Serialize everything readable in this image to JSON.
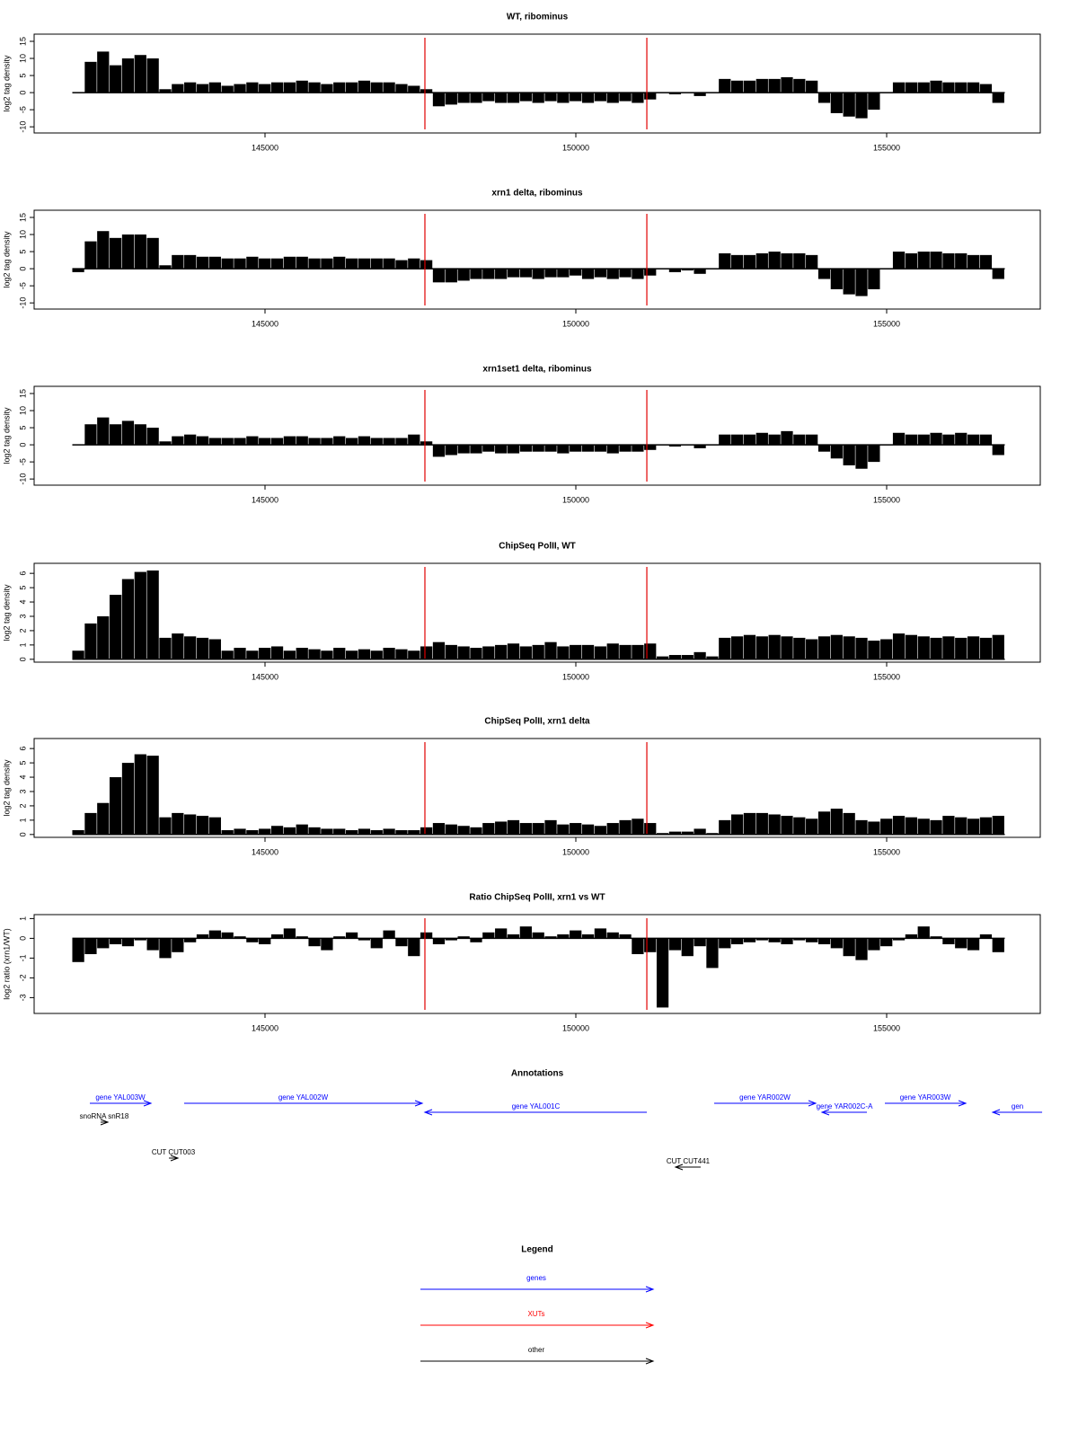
{
  "chart_data": [
    {
      "type": "bar",
      "title": "WT, ribominus",
      "ylabel": "log2 tag density",
      "color": "#000000",
      "vline_color": "#e00000",
      "xlim": [
        141286,
        157471
      ],
      "xticks": [
        145000,
        150000,
        155000
      ],
      "ylim": [
        -11.8,
        17.1
      ],
      "yticks": [
        -10,
        -5,
        0,
        5,
        10,
        15
      ],
      "vlines": [
        147572,
        151142
      ],
      "x": [
        141900,
        142100,
        142300,
        142500,
        142700,
        142900,
        143100,
        143300,
        143500,
        143700,
        143900,
        144100,
        144300,
        144500,
        144700,
        144900,
        145100,
        145300,
        145500,
        145700,
        145900,
        146100,
        146300,
        146500,
        146700,
        146900,
        147100,
        147300,
        147500,
        147700,
        147900,
        148100,
        148300,
        148500,
        148700,
        148900,
        149100,
        149300,
        149500,
        149700,
        149900,
        150100,
        150300,
        150500,
        150700,
        150900,
        151100,
        151300,
        151500,
        151700,
        151900,
        152100,
        152300,
        152500,
        152700,
        152900,
        153100,
        153300,
        153500,
        153700,
        153900,
        154100,
        154300,
        154500,
        154700,
        154900,
        155100,
        155300,
        155500,
        155700,
        155900,
        156100,
        156300,
        156500,
        156700
      ],
      "values": [
        0,
        9,
        12,
        8,
        10,
        11,
        10,
        1,
        2.5,
        3,
        2.5,
        3,
        2,
        2.5,
        3,
        2.5,
        3,
        3,
        3.5,
        3,
        2.5,
        3,
        3,
        3.5,
        3,
        3,
        2.5,
        2,
        1,
        -4,
        -3.5,
        -3,
        -3,
        -2.5,
        -3,
        -3,
        -2.5,
        -3,
        -2.5,
        -3,
        -2.5,
        -3,
        -2.5,
        -3,
        -2.5,
        -3,
        -2,
        0,
        -0.5,
        0,
        -1,
        0,
        4,
        3.5,
        3.5,
        4,
        4,
        4.5,
        4,
        3.5,
        -3,
        -6,
        -7,
        -7.5,
        -5,
        0,
        3,
        3,
        3,
        3.5,
        3,
        3,
        3,
        2.5,
        -3
      ]
    },
    {
      "type": "bar",
      "title": "xrn1 delta, ribominus",
      "ylabel": "log2 tag density",
      "color": "#000000",
      "vline_color": "#e00000",
      "xlim": [
        141286,
        157471
      ],
      "xticks": [
        145000,
        150000,
        155000
      ],
      "ylim": [
        -11.8,
        17.1
      ],
      "yticks": [
        -10,
        -5,
        0,
        5,
        10,
        15
      ],
      "vlines": [
        147572,
        151142
      ],
      "x": [
        141900,
        142100,
        142300,
        142500,
        142700,
        142900,
        143100,
        143300,
        143500,
        143700,
        143900,
        144100,
        144300,
        144500,
        144700,
        144900,
        145100,
        145300,
        145500,
        145700,
        145900,
        146100,
        146300,
        146500,
        146700,
        146900,
        147100,
        147300,
        147500,
        147700,
        147900,
        148100,
        148300,
        148500,
        148700,
        148900,
        149100,
        149300,
        149500,
        149700,
        149900,
        150100,
        150300,
        150500,
        150700,
        150900,
        151100,
        151300,
        151500,
        151700,
        151900,
        152100,
        152300,
        152500,
        152700,
        152900,
        153100,
        153300,
        153500,
        153700,
        153900,
        154100,
        154300,
        154500,
        154700,
        154900,
        155100,
        155300,
        155500,
        155700,
        155900,
        156100,
        156300,
        156500,
        156700
      ],
      "values": [
        -1,
        8,
        11,
        9,
        10,
        10,
        9,
        1,
        4,
        4,
        3.5,
        3.5,
        3,
        3,
        3.5,
        3,
        3,
        3.5,
        3.5,
        3,
        3,
        3.5,
        3,
        3,
        3,
        3,
        2.5,
        3,
        2.5,
        -4,
        -4,
        -3.5,
        -3,
        -3,
        -3,
        -2.5,
        -2.5,
        -3,
        -2.5,
        -2.5,
        -2,
        -3,
        -2.5,
        -3,
        -2.5,
        -3,
        -2,
        0,
        -1,
        -0.5,
        -1.5,
        0,
        4.5,
        4,
        4,
        4.5,
        5,
        4.5,
        4.5,
        4,
        -3,
        -6,
        -7.5,
        -8,
        -6,
        0,
        5,
        4.5,
        5,
        5,
        4.5,
        4.5,
        4,
        4,
        -3
      ]
    },
    {
      "type": "bar",
      "title": "xrn1set1 delta, ribominus",
      "ylabel": "log2 tag density",
      "color": "#000000",
      "vline_color": "#e00000",
      "xlim": [
        141286,
        157471
      ],
      "xticks": [
        145000,
        150000,
        155000
      ],
      "ylim": [
        -11.8,
        17.1
      ],
      "yticks": [
        -10,
        -5,
        0,
        5,
        10,
        15
      ],
      "vlines": [
        147572,
        151142
      ],
      "x": [
        141900,
        142100,
        142300,
        142500,
        142700,
        142900,
        143100,
        143300,
        143500,
        143700,
        143900,
        144100,
        144300,
        144500,
        144700,
        144900,
        145100,
        145300,
        145500,
        145700,
        145900,
        146100,
        146300,
        146500,
        146700,
        146900,
        147100,
        147300,
        147500,
        147700,
        147900,
        148100,
        148300,
        148500,
        148700,
        148900,
        149100,
        149300,
        149500,
        149700,
        149900,
        150100,
        150300,
        150500,
        150700,
        150900,
        151100,
        151300,
        151500,
        151700,
        151900,
        152100,
        152300,
        152500,
        152700,
        152900,
        153100,
        153300,
        153500,
        153700,
        153900,
        154100,
        154300,
        154500,
        154700,
        154900,
        155100,
        155300,
        155500,
        155700,
        155900,
        156100,
        156300,
        156500,
        156700
      ],
      "values": [
        0,
        6,
        8,
        6,
        7,
        6,
        5,
        1,
        2.5,
        3,
        2.5,
        2,
        2,
        2,
        2.5,
        2,
        2,
        2.5,
        2.5,
        2,
        2,
        2.5,
        2,
        2.5,
        2,
        2,
        2,
        3,
        1,
        -3.5,
        -3,
        -2.5,
        -2.5,
        -2,
        -2.5,
        -2.5,
        -2,
        -2,
        -2,
        -2.5,
        -2,
        -2,
        -2,
        -2.5,
        -2,
        -2,
        -1.5,
        0,
        -0.5,
        0,
        -1,
        0,
        3,
        3,
        3,
        3.5,
        3,
        4,
        3,
        3,
        -2,
        -4,
        -6,
        -7,
        -5,
        0,
        3.5,
        3,
        3,
        3.5,
        3,
        3.5,
        3,
        3,
        -3
      ]
    },
    {
      "type": "bar",
      "title": "ChipSeq PolII, WT",
      "ylabel": "log2 tag density",
      "color": "#000000",
      "vline_color": "#e00000",
      "xlim": [
        141286,
        157471
      ],
      "xticks": [
        145000,
        150000,
        155000
      ],
      "ylim": [
        -0.2,
        6.7
      ],
      "yticks": [
        0,
        1,
        2,
        3,
        4,
        5,
        6
      ],
      "vlines": [
        147572,
        151142
      ],
      "x": [
        141900,
        142100,
        142300,
        142500,
        142700,
        142900,
        143100,
        143300,
        143500,
        143700,
        143900,
        144100,
        144300,
        144500,
        144700,
        144900,
        145100,
        145300,
        145500,
        145700,
        145900,
        146100,
        146300,
        146500,
        146700,
        146900,
        147100,
        147300,
        147500,
        147700,
        147900,
        148100,
        148300,
        148500,
        148700,
        148900,
        149100,
        149300,
        149500,
        149700,
        149900,
        150100,
        150300,
        150500,
        150700,
        150900,
        151100,
        151300,
        151500,
        151700,
        151900,
        152100,
        152300,
        152500,
        152700,
        152900,
        153100,
        153300,
        153500,
        153700,
        153900,
        154100,
        154300,
        154500,
        154700,
        154900,
        155100,
        155300,
        155500,
        155700,
        155900,
        156100,
        156300,
        156500,
        156700
      ],
      "values": [
        0.6,
        2.5,
        3,
        4.5,
        5.6,
        6.1,
        6.2,
        1.5,
        1.8,
        1.6,
        1.5,
        1.4,
        0.6,
        0.8,
        0.6,
        0.8,
        0.9,
        0.6,
        0.8,
        0.7,
        0.6,
        0.8,
        0.6,
        0.7,
        0.6,
        0.8,
        0.7,
        0.6,
        0.9,
        1.2,
        1,
        0.9,
        0.8,
        0.9,
        1,
        1.1,
        0.9,
        1,
        1.2,
        0.9,
        1,
        1,
        0.9,
        1.1,
        1,
        1,
        1.1,
        0.2,
        0.3,
        0.3,
        0.5,
        0.2,
        1.5,
        1.6,
        1.7,
        1.6,
        1.7,
        1.6,
        1.5,
        1.4,
        1.6,
        1.7,
        1.6,
        1.5,
        1.3,
        1.4,
        1.8,
        1.7,
        1.6,
        1.5,
        1.6,
        1.5,
        1.6,
        1.5,
        1.7
      ]
    },
    {
      "type": "bar",
      "title": "ChipSeq PolII, xrn1 delta",
      "ylabel": "log2 tag density",
      "color": "#000000",
      "vline_color": "#e00000",
      "xlim": [
        141286,
        157471
      ],
      "xticks": [
        145000,
        150000,
        155000
      ],
      "ylim": [
        -0.2,
        6.7
      ],
      "yticks": [
        0,
        1,
        2,
        3,
        4,
        5,
        6
      ],
      "vlines": [
        147572,
        151142
      ],
      "x": [
        141900,
        142100,
        142300,
        142500,
        142700,
        142900,
        143100,
        143300,
        143500,
        143700,
        143900,
        144100,
        144300,
        144500,
        144700,
        144900,
        145100,
        145300,
        145500,
        145700,
        145900,
        146100,
        146300,
        146500,
        146700,
        146900,
        147100,
        147300,
        147500,
        147700,
        147900,
        148100,
        148300,
        148500,
        148700,
        148900,
        149100,
        149300,
        149500,
        149700,
        149900,
        150100,
        150300,
        150500,
        150700,
        150900,
        151100,
        151300,
        151500,
        151700,
        151900,
        152100,
        152300,
        152500,
        152700,
        152900,
        153100,
        153300,
        153500,
        153700,
        153900,
        154100,
        154300,
        154500,
        154700,
        154900,
        155100,
        155300,
        155500,
        155700,
        155900,
        156100,
        156300,
        156500,
        156700
      ],
      "values": [
        0.3,
        1.5,
        2.2,
        4,
        5,
        5.6,
        5.5,
        1.2,
        1.5,
        1.4,
        1.3,
        1.2,
        0.3,
        0.4,
        0.3,
        0.4,
        0.6,
        0.5,
        0.7,
        0.5,
        0.4,
        0.4,
        0.3,
        0.4,
        0.3,
        0.4,
        0.3,
        0.3,
        0.5,
        0.8,
        0.7,
        0.6,
        0.5,
        0.8,
        0.9,
        1,
        0.8,
        0.8,
        1,
        0.7,
        0.8,
        0.7,
        0.6,
        0.8,
        1,
        1.1,
        0.8,
        0.1,
        0.2,
        0.2,
        0.4,
        0.1,
        1,
        1.4,
        1.5,
        1.5,
        1.4,
        1.3,
        1.2,
        1.1,
        1.6,
        1.8,
        1.5,
        1,
        0.9,
        1.1,
        1.3,
        1.2,
        1.1,
        1,
        1.3,
        1.2,
        1.1,
        1.2,
        1.3
      ]
    },
    {
      "type": "bar",
      "title": "Ratio ChipSeq PolII, xrn1 vs WT",
      "ylabel": "log2 ratio (xrn1/WT)",
      "color": "#000000",
      "vline_color": "#e00000",
      "xlim": [
        141286,
        157471
      ],
      "xticks": [
        145000,
        150000,
        155000
      ],
      "ylim": [
        -3.8,
        1.2
      ],
      "yticks": [
        -3,
        -2,
        -1,
        0,
        1
      ],
      "vlines": [
        147572,
        151142
      ],
      "x": [
        141900,
        142100,
        142300,
        142500,
        142700,
        142900,
        143100,
        143300,
        143500,
        143700,
        143900,
        144100,
        144300,
        144500,
        144700,
        144900,
        145100,
        145300,
        145500,
        145700,
        145900,
        146100,
        146300,
        146500,
        146700,
        146900,
        147100,
        147300,
        147500,
        147700,
        147900,
        148100,
        148300,
        148500,
        148700,
        148900,
        149100,
        149300,
        149500,
        149700,
        149900,
        150100,
        150300,
        150500,
        150700,
        150900,
        151100,
        151300,
        151500,
        151700,
        151900,
        152100,
        152300,
        152500,
        152700,
        152900,
        153100,
        153300,
        153500,
        153700,
        153900,
        154100,
        154300,
        154500,
        154700,
        154900,
        155100,
        155300,
        155500,
        155700,
        155900,
        156100,
        156300,
        156500,
        156700
      ],
      "values": [
        -1.2,
        -0.8,
        -0.5,
        -0.3,
        -0.4,
        -0.1,
        -0.6,
        -1,
        -0.7,
        -0.2,
        0.2,
        0.4,
        0.3,
        0.1,
        -0.2,
        -0.3,
        0.2,
        0.5,
        0.1,
        -0.4,
        -0.6,
        0.1,
        0.3,
        -0.1,
        -0.5,
        0.4,
        -0.4,
        -0.9,
        0.3,
        -0.3,
        -0.1,
        0.1,
        -0.2,
        0.3,
        0.5,
        0.2,
        0.6,
        0.3,
        0.1,
        0.2,
        0.4,
        0.2,
        0.5,
        0.3,
        0.2,
        -0.8,
        -0.7,
        -3.5,
        -0.6,
        -0.9,
        -0.4,
        -1.5,
        -0.5,
        -0.3,
        -0.2,
        -0.1,
        -0.2,
        -0.3,
        -0.1,
        -0.2,
        -0.3,
        -0.5,
        -0.9,
        -1.1,
        -0.6,
        -0.4,
        -0.1,
        0.2,
        0.6,
        0.1,
        -0.3,
        -0.5,
        -0.6,
        0.2,
        -0.7
      ]
    }
  ],
  "annotations": {
    "title": "Annotations",
    "xlim": [
      141286,
      157471
    ],
    "features": [
      {
        "label": "gene YAL003W",
        "start": 142182,
        "end": 143165,
        "color": "#0000ff"
      },
      {
        "label": "gene YAL002W",
        "start": 143699,
        "end": 147529,
        "color": "#0000ff"
      },
      {
        "label": "gene YAL001C",
        "start": 151142,
        "end": 147572,
        "color": "#0000ff"
      },
      {
        "label": "gene YAR002W",
        "start": 152225,
        "end": 153858,
        "color": "#0000ff"
      },
      {
        "label": "gene YAR002C-A",
        "start": 154682,
        "end": 153960,
        "color": "#0000ff"
      },
      {
        "label": "gene YAR003W",
        "start": 154971,
        "end": 156272,
        "color": "#0000ff"
      },
      {
        "label": "gen",
        "start": 157501,
        "end": 156706,
        "color": "#0000ff"
      },
      {
        "label": "snoRNA snR18",
        "start": 142355,
        "end": 142471,
        "color": "#000000"
      },
      {
        "label": "CUT CUT003",
        "start": 143454,
        "end": 143598,
        "color": "#000000"
      },
      {
        "label": "CUT CUT441",
        "start": 152008,
        "end": 151604,
        "color": "#000000"
      }
    ]
  },
  "legend": {
    "title": "Legend",
    "items": [
      {
        "label": "genes",
        "color": "#0000ff"
      },
      {
        "label": "XUTs",
        "color": "#ff0000"
      },
      {
        "label": "other",
        "color": "#000000"
      }
    ]
  }
}
